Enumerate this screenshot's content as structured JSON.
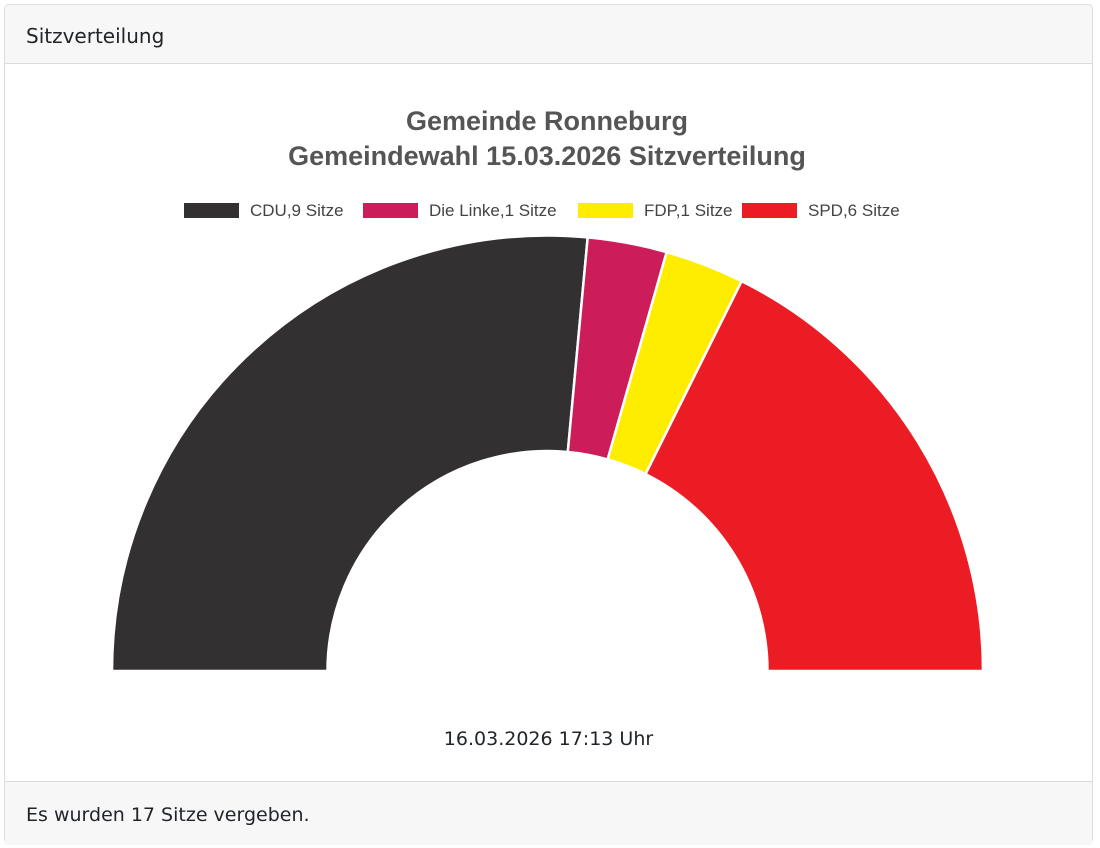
{
  "card": {
    "header": "Sitzverteilung",
    "footer": "Es wurden 17 Sitze vergeben."
  },
  "chart": {
    "title_line1": "Gemeinde Ronneburg",
    "title_line2": "Gemeindewahl 15.03.2026 Sitzverteilung",
    "timestamp": "16.03.2026 17:13 Uhr",
    "legend": [
      {
        "label": "CDU,9 Sitze",
        "color": "#333031"
      },
      {
        "label": "Die Linke,1 Sitze",
        "color": "#cc1d5a"
      },
      {
        "label": "FDP,1 Sitze",
        "color": "#ffed00"
      },
      {
        "label": "SPD,6 Sitze",
        "color": "#ec1c24"
      }
    ]
  },
  "chart_data": {
    "type": "pie",
    "variant": "half-donut (parliament seat distribution)",
    "title": "Gemeinde Ronneburg\nGemeindewahl 15.03.2026 Sitzverteilung",
    "categories": [
      "CDU",
      "Die Linke",
      "FDP",
      "SPD"
    ],
    "values": [
      9,
      1,
      1,
      6
    ],
    "unit": "Sitze",
    "total": 17,
    "colors": [
      "#333031",
      "#cc1d5a",
      "#ffed00",
      "#ec1c24"
    ],
    "legend_position": "top",
    "legend_entries": [
      "CDU,9 Sitze",
      "Die Linke,1 Sitze",
      "FDP,1 Sitze",
      "SPD,6 Sitze"
    ],
    "caption": "16.03.2026 17:13 Uhr"
  }
}
